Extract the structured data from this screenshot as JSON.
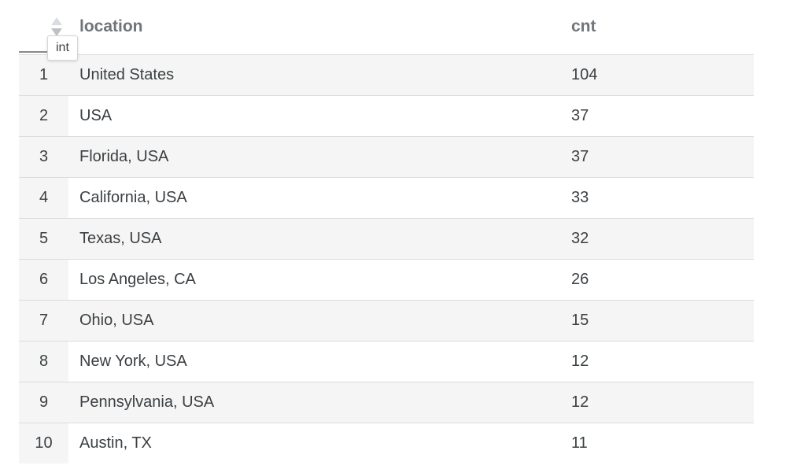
{
  "columns": {
    "location": "location",
    "cnt": "cnt"
  },
  "tooltip": {
    "text": "int"
  },
  "icons": {
    "sort": "sort-arrows-icon"
  },
  "colors": {
    "header_text": "#70757a",
    "cell_text": "#3c4043",
    "row_stripe": "#f5f5f5",
    "border": "#dadce0"
  },
  "rows": [
    {
      "index": "1",
      "location": "United States",
      "cnt": "104"
    },
    {
      "index": "2",
      "location": "USA",
      "cnt": "37"
    },
    {
      "index": "3",
      "location": "Florida, USA",
      "cnt": "37"
    },
    {
      "index": "4",
      "location": "California, USA",
      "cnt": "33"
    },
    {
      "index": "5",
      "location": "Texas, USA",
      "cnt": "32"
    },
    {
      "index": "6",
      "location": "Los Angeles, CA",
      "cnt": "26"
    },
    {
      "index": "7",
      "location": "Ohio, USA",
      "cnt": "15"
    },
    {
      "index": "8",
      "location": "New York, USA",
      "cnt": "12"
    },
    {
      "index": "9",
      "location": "Pennsylvania, USA",
      "cnt": "12"
    },
    {
      "index": "10",
      "location": "Austin, TX",
      "cnt": "11"
    }
  ]
}
